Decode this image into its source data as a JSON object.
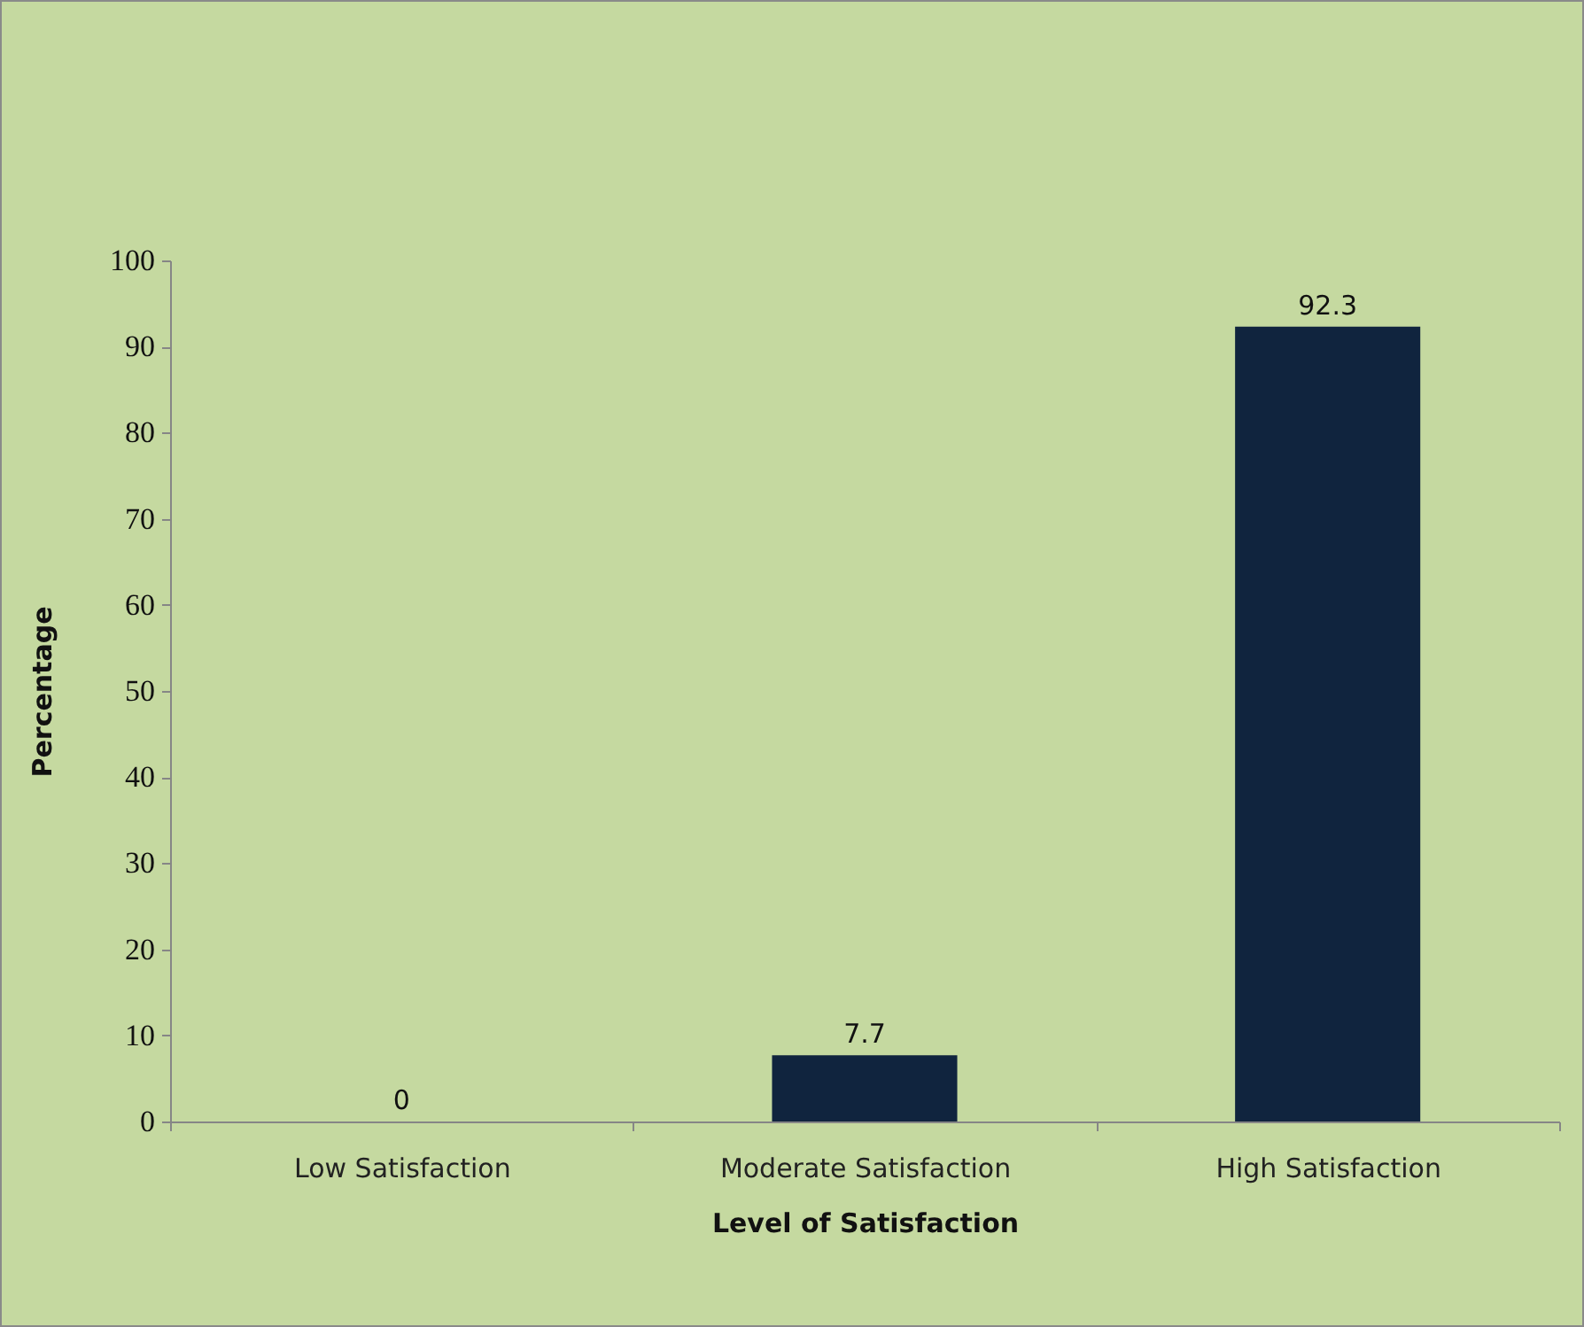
{
  "chart_data": {
    "type": "bar",
    "xlabel": "Level of Satisfaction",
    "ylabel": "Percentage",
    "categories": [
      "Low Satisfaction",
      "Moderate Satisfaction",
      "High Satisfaction"
    ],
    "values": [
      0,
      7.7,
      92.3
    ],
    "color": "#10243e",
    "ylim": [
      0,
      100
    ],
    "yticks": [
      0,
      10,
      20,
      30,
      40,
      50,
      60,
      70,
      80,
      90,
      100
    ],
    "grid": false,
    "data_labels": true
  }
}
